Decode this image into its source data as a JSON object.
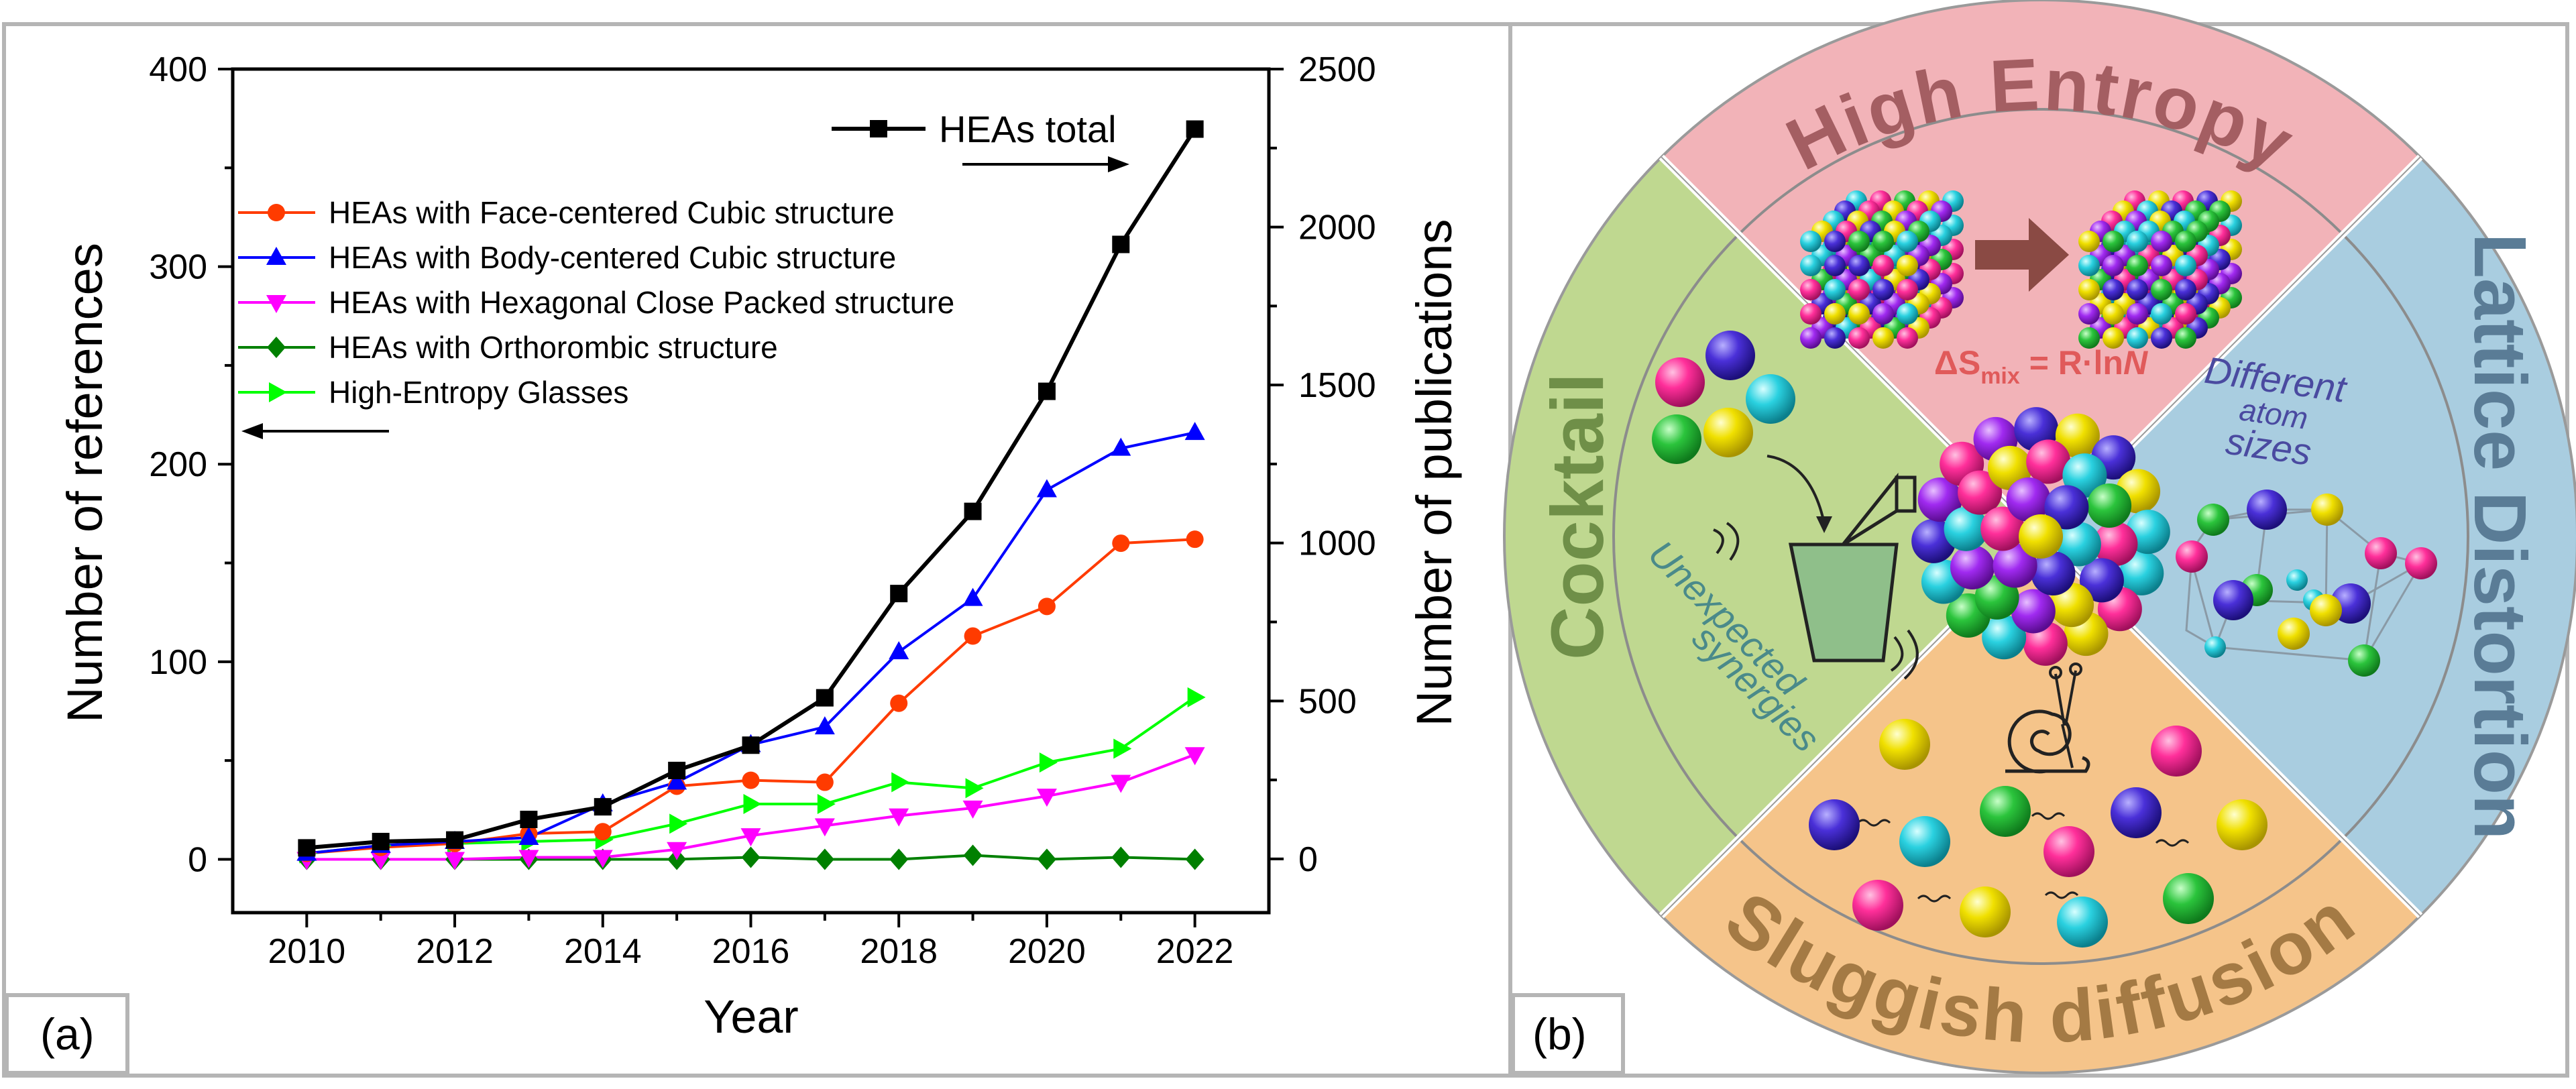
{
  "panel_a": {
    "label": "(a)",
    "chart_data": {
      "type": "line",
      "title": "",
      "xlabel": "Year",
      "ylabel": "Number of references",
      "y2label": "Number of publications",
      "x": [
        2010,
        2011,
        2012,
        2013,
        2014,
        2015,
        2016,
        2017,
        2018,
        2019,
        2020,
        2021,
        2022
      ],
      "xticks": [
        "2010",
        "2012",
        "2014",
        "2016",
        "2018",
        "2020",
        "2022"
      ],
      "xlim": [
        2009,
        2023
      ],
      "ylim": [
        -27,
        400
      ],
      "yticks": [
        "0",
        "100",
        "200",
        "300",
        "400"
      ],
      "y2lim": [
        -170,
        2500
      ],
      "y2ticks": [
        "0",
        "500",
        "1000",
        "1500",
        "2000",
        "2500"
      ],
      "legend_position": "top-left",
      "series": [
        {
          "name": "HEAs total",
          "axis": "right",
          "color": "#000000",
          "marker": "square",
          "values": [
            35,
            55,
            60,
            125,
            165,
            280,
            360,
            510,
            840,
            1100,
            1480,
            1945,
            2310
          ]
        },
        {
          "name": "HEAs with Face-centered Cubic structure",
          "axis": "left",
          "color": "#ff3b00",
          "marker": "circle",
          "values": [
            3,
            6,
            8,
            13,
            14,
            37,
            40,
            39,
            79,
            113,
            128,
            160,
            162
          ]
        },
        {
          "name": "HEAs with Body-centered Cubic structure",
          "axis": "left",
          "color": "#0000ff",
          "marker": "triangle-up",
          "values": [
            3,
            7,
            9,
            11,
            28,
            39,
            58,
            67,
            105,
            132,
            187,
            208,
            216
          ]
        },
        {
          "name": "HEAs with Hexagonal Close Packed structure",
          "axis": "left",
          "color": "#ff00ff",
          "marker": "triangle-down",
          "values": [
            0,
            0,
            0,
            1,
            1,
            5,
            12,
            17,
            22,
            26,
            32,
            39,
            53
          ]
        },
        {
          "name": "HEAs with Orthorombic structure",
          "axis": "left",
          "color": "#008000",
          "marker": "diamond",
          "values": [
            0,
            0,
            0,
            0,
            0,
            0,
            1,
            0,
            0,
            2,
            0,
            1,
            0
          ]
        },
        {
          "name": "High-Entropy Glasses",
          "axis": "left",
          "color": "#00ff00",
          "marker": "triangle-right",
          "values": [
            3,
            7,
            8,
            9,
            10,
            18,
            28,
            28,
            39,
            36,
            49,
            56,
            82
          ]
        }
      ]
    }
  },
  "panel_b": {
    "label": "(b)",
    "quadrants": {
      "top": {
        "title": "High Entropy",
        "formula_delta": "ΔS",
        "formula_sub": "mix",
        "formula_rest": " = R·ln",
        "formula_n": "N",
        "color": "#f2b3b8"
      },
      "right": {
        "title": "Lattice Distortion",
        "caption_line1": "Different",
        "caption_line2": "atom",
        "caption_line3": "sizes",
        "color": "#a9cde0"
      },
      "bottom": {
        "title": "Sluggish diffusion",
        "color": "#f5c48a"
      },
      "left": {
        "title": "Cocktail",
        "caption_line1": "Unexpected",
        "caption_line2": "synergies",
        "color": "#bfd890"
      }
    },
    "atom_colors": [
      "#ff2f9a",
      "#3a2ad8",
      "#2ad1e0",
      "#f0e000",
      "#2bc43c",
      "#a02af0"
    ]
  }
}
